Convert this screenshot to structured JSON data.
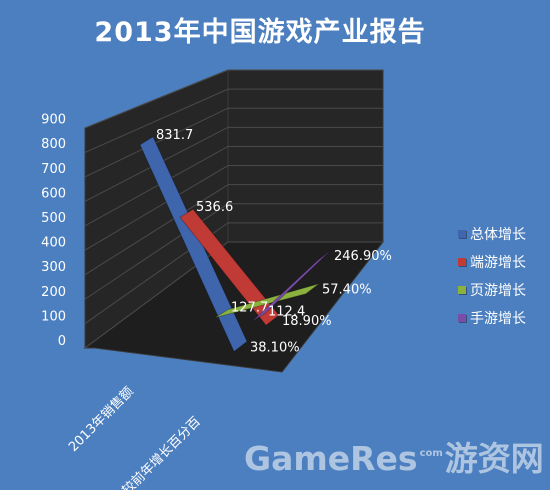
{
  "chart_data": {
    "type": "bar",
    "title": "2013年中国游戏产业报告",
    "categories": [
      "2013年销售额",
      "较前年增长百分百"
    ],
    "series": [
      {
        "name": "总体增长",
        "color": "#3f66ad",
        "values": [
          831.7,
          38.1
        ],
        "labels": [
          "831.7",
          "38.10%"
        ]
      },
      {
        "name": "端游增长",
        "color": "#c03a36",
        "values": [
          536.6,
          18.9
        ],
        "labels": [
          "536.6",
          "18.90%"
        ]
      },
      {
        "name": "页游增长",
        "color": "#8bb23f",
        "values": [
          127.7,
          57.4
        ],
        "labels": [
          "127.7",
          "57.40%"
        ]
      },
      {
        "name": "手游增长",
        "color": "#7a4da6",
        "values": [
          112.4,
          246.9
        ],
        "labels": [
          "112.4",
          "246.90%"
        ]
      }
    ],
    "ylim": [
      0,
      900
    ],
    "yticks": [
      "0",
      "100",
      "200",
      "300",
      "400",
      "500",
      "600",
      "700",
      "800",
      "900"
    ],
    "grid": true,
    "legend_position": "right",
    "chart_style": "3d-line"
  },
  "watermark": {
    "text_left": "GameRes",
    "text_small": "com",
    "text_right": "游资网"
  }
}
